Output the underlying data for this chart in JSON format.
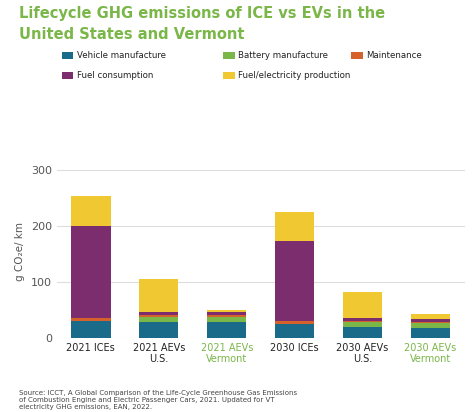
{
  "categories": [
    "2021 ICEs",
    "2021 AEVs\nU.S.",
    "2021 AEVs\nVermont",
    "2030 ICEs",
    "2030 AEVs\nU.S.",
    "2030 AEVs\nVermont"
  ],
  "cat_colors": [
    "#222222",
    "#222222",
    "#7ab648",
    "#222222",
    "#222222",
    "#7ab648"
  ],
  "segments": {
    "Vehicle manufacture": [
      30,
      28,
      28,
      25,
      20,
      18
    ],
    "Battery manufacture": [
      0,
      10,
      10,
      0,
      8,
      8
    ],
    "Maintenance": [
      5,
      3,
      3,
      5,
      3,
      3
    ],
    "Fuel consumption": [
      165,
      5,
      5,
      143,
      5,
      5
    ],
    "Fuel/electricity production": [
      55,
      59,
      4,
      52,
      46,
      9
    ]
  },
  "colors": {
    "Vehicle manufacture": "#1a6b8a",
    "Battery manufacture": "#7ab648",
    "Maintenance": "#d4622a",
    "Fuel consumption": "#7b2d6e",
    "Fuel/electricity production": "#f0c832"
  },
  "title_line1": "Lifecycle GHG emissions of ICE vs EVs in the",
  "title_line2": "United States and Vermont",
  "ylabel": "g CO₂e/ km",
  "ylim": [
    0,
    310
  ],
  "yticks": [
    0,
    100,
    200,
    300
  ],
  "source_text": "Source: ICCT, A Global Comparison of the Life-Cycle Greenhouse Gas Emissions\nof Combustion Engine and Electric Passenger Cars, 2021. Updated for VT\nelectricity GHG emissions, EAN, 2022.",
  "bg_color": "#ffffff",
  "title_color": "#7ab648",
  "grid_color": "#dddddd",
  "legend_order": [
    "Vehicle manufacture",
    "Battery manufacture",
    "Maintenance",
    "Fuel consumption",
    "Fuel/electricity production"
  ]
}
